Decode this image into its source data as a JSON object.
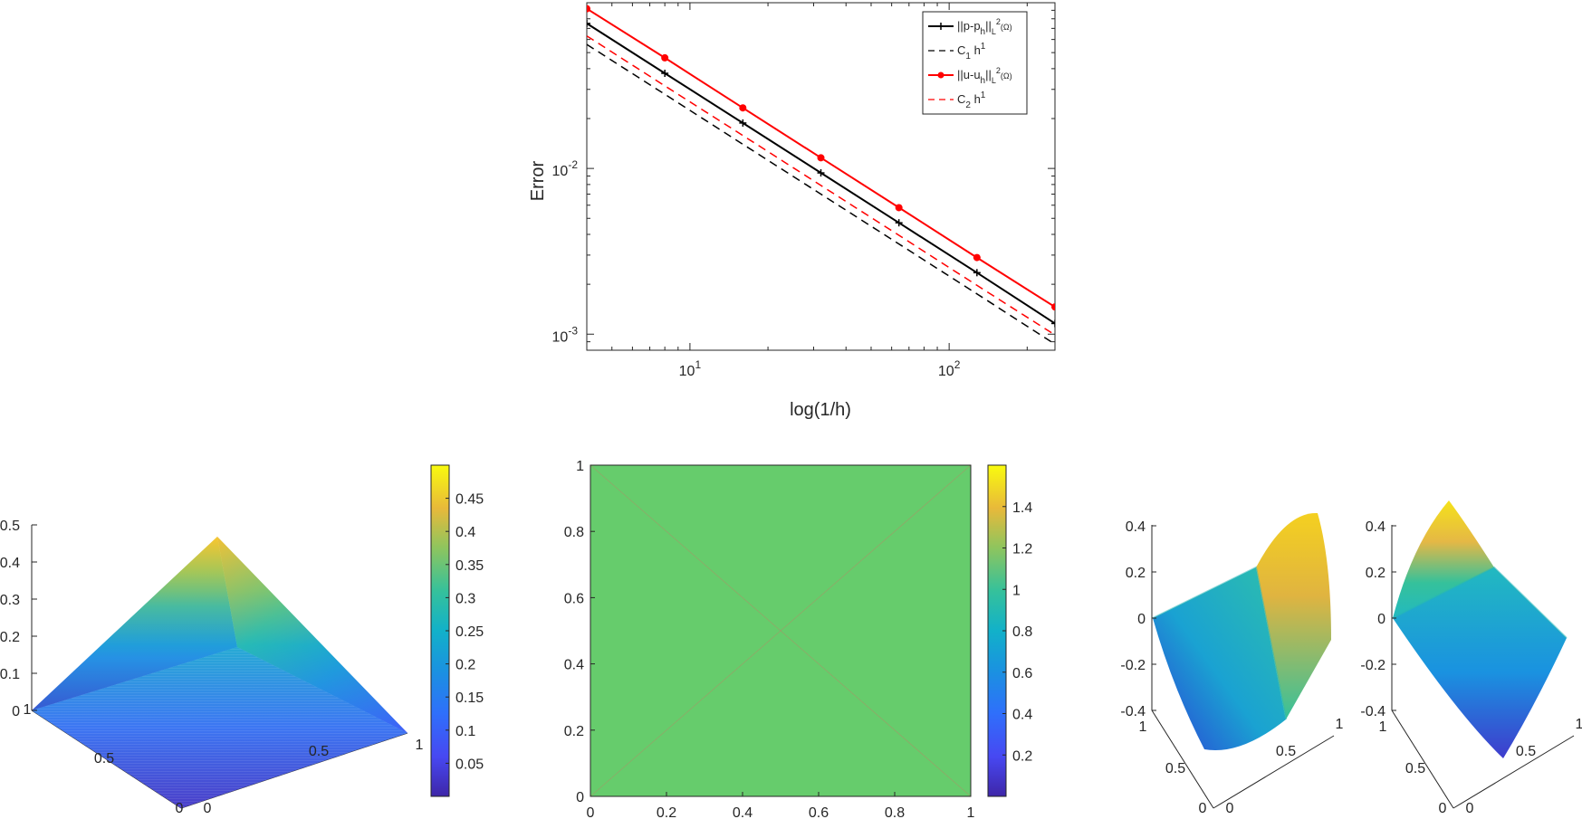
{
  "chart_data": [
    {
      "type": "line",
      "xscale": "log",
      "yscale": "log",
      "xlabel": "log(1/h)",
      "ylabel": "Error",
      "xlim": [
        4,
        256
      ],
      "ylim": [
        0.0008,
        0.1
      ],
      "xticks": [
        {
          "value": 10,
          "base": "10",
          "exp": "1"
        },
        {
          "value": 100,
          "base": "10",
          "exp": "2"
        }
      ],
      "yticks": [
        {
          "value": 0.001,
          "base": "10",
          "exp": "-3"
        },
        {
          "value": 0.01,
          "base": "10",
          "exp": "-2"
        }
      ],
      "legend_position": "top-right",
      "x": [
        4,
        8,
        16,
        32,
        64,
        128,
        256
      ],
      "series": [
        {
          "legend": {
            "pre": "||p-p",
            "sub1": "h",
            "mid": "||",
            "sub2": "L",
            "sup": "2",
            "post": "(Ω)"
          },
          "values": [
            0.075,
            0.0375,
            0.0188,
            0.0094,
            0.0047,
            0.00235,
            0.00116
          ],
          "color": "#000000",
          "style": "solid",
          "marker": "plus"
        },
        {
          "legend": {
            "pre": "C",
            "sub1": "1",
            "mid": " h",
            "sup": "1"
          },
          "values": [
            0.056,
            0.028,
            0.014,
            0.007,
            0.0035,
            0.00175,
            0.00087
          ],
          "color": "#000000",
          "style": "dashed",
          "marker": "none"
        },
        {
          "legend": {
            "pre": "||u-u",
            "sub1": "h",
            "mid": "||",
            "sub2": "L",
            "sup": "2",
            "post": "(Ω)"
          },
          "values": [
            0.092,
            0.0465,
            0.0232,
            0.0116,
            0.0058,
            0.0029,
            0.00146
          ],
          "color": "#ff0000",
          "style": "solid",
          "marker": "dot"
        },
        {
          "legend": {
            "pre": "C",
            "sub1": "2",
            "mid": " h",
            "sup": "1"
          },
          "values": [
            0.063,
            0.0315,
            0.0158,
            0.0079,
            0.00395,
            0.00197,
            0.00099
          ],
          "color": "#ff0000",
          "style": "dashed",
          "marker": "none"
        }
      ]
    },
    {
      "type": "surface",
      "zlim": [
        0,
        0.5
      ],
      "zticks": [
        "0",
        "0.1",
        "0.2",
        "0.3",
        "0.4",
        "0.5"
      ],
      "xticks": [
        "0",
        "0.5",
        "1"
      ],
      "yticks": [
        "0",
        "0.5",
        "1"
      ],
      "colorbar": {
        "ticks": [
          "0.05",
          "0.1",
          "0.15",
          "0.2",
          "0.25",
          "0.3",
          "0.35",
          "0.4",
          "0.45"
        ],
        "range": [
          0,
          0.5
        ]
      },
      "colormap": "parula"
    },
    {
      "type": "heatmap",
      "xlim": [
        0,
        1
      ],
      "ylim": [
        0,
        1
      ],
      "xticks": [
        "0",
        "0.2",
        "0.4",
        "0.6",
        "0.8",
        "1"
      ],
      "yticks": [
        "0",
        "0.2",
        "0.4",
        "0.6",
        "0.8",
        "1"
      ],
      "value": 1,
      "fill_color": "#66cc6c",
      "colorbar": {
        "ticks": [
          "0.2",
          "0.4",
          "0.6",
          "0.8",
          "1",
          "1.2",
          "1.4"
        ],
        "range": [
          0,
          1.6
        ]
      }
    },
    {
      "type": "surface",
      "zticks": [
        "-0.4",
        "-0.2",
        "0",
        "0.2",
        "0.4"
      ],
      "xticks": [
        "0",
        "0.5",
        "1"
      ],
      "yticks": [
        "0",
        "0.5",
        "1"
      ]
    },
    {
      "type": "surface",
      "zticks": [
        "-0.4",
        "-0.2",
        "0",
        "0.2",
        "0.4"
      ],
      "xticks": [
        "0",
        "0.5",
        "1"
      ],
      "yticks": [
        "0",
        "0.5",
        "1"
      ]
    }
  ]
}
